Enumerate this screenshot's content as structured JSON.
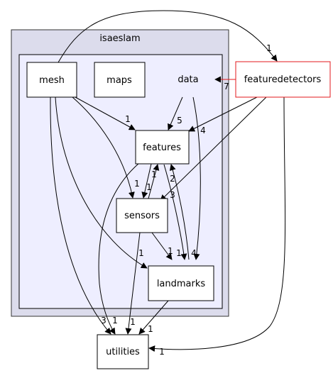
{
  "graph": {
    "clusters": {
      "outer": {
        "label": "isaeslam",
        "fill": "#dcdcec",
        "stroke": "#333333"
      },
      "inner": {
        "fill": "#eeeeff",
        "stroke": "#000000"
      }
    },
    "nodes": {
      "mesh": "mesh",
      "maps": "maps",
      "data": "data",
      "features": "features",
      "sensors": "sensors",
      "landmarks": "landmarks",
      "utilities": "utilities",
      "featuredetectors": "featuredetectors"
    },
    "edges": {
      "mesh_featuredetectors": "1",
      "featuredetectors_data": "7",
      "mesh_features": "1",
      "data_features": "5",
      "featuredetectors_features": "4",
      "features_sensors": "1",
      "sensors_features": "1",
      "mesh_sensors": "1",
      "featuredetectors_sensors": "3",
      "features_landmarks": "2",
      "landmarks_features": "1",
      "sensors_landmarks": "1",
      "data_landmarks": "4",
      "mesh_landmarks": "1",
      "mesh_utilities": "3",
      "features_utilities": "1",
      "sensors_utilities": "1",
      "landmarks_utilities": "1",
      "featuredetectors_utilities": "1"
    },
    "colors": {
      "edge": "#000000",
      "highlight": "#e31a1c"
    }
  }
}
